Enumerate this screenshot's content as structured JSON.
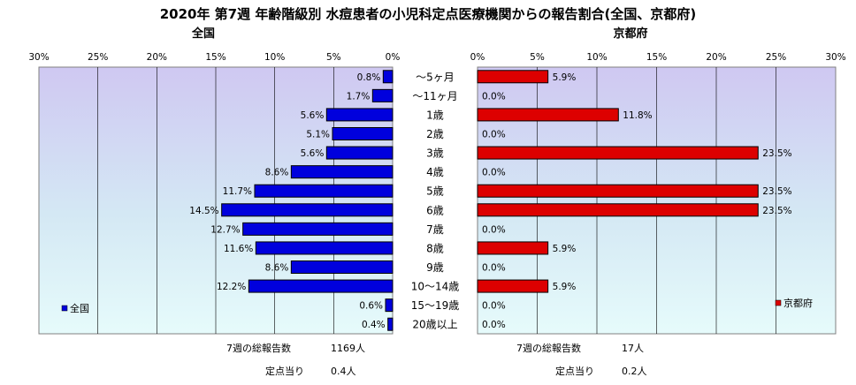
{
  "title": "2020年 第7週 年齢階級別 水痘患者の小児科定点医療機関からの報告割合(全国、京都府)",
  "colors": {
    "national_bar": "#0000dd",
    "kyoto_bar": "#dd0000",
    "bar_edge": "#000000",
    "grid": "#000000"
  },
  "chart_data": [
    {
      "type": "bar",
      "orientation": "horizontal",
      "direction": "right-to-left",
      "title": "全国",
      "categories": [
        "～5ヶ月",
        "～11ヶ月",
        "1歳",
        "2歳",
        "3歳",
        "4歳",
        "5歳",
        "6歳",
        "7歳",
        "8歳",
        "9歳",
        "10～14歳",
        "15～19歳",
        "20歳以上"
      ],
      "series": [
        {
          "name": "全国",
          "values": [
            0.8,
            1.7,
            5.6,
            5.1,
            5.6,
            8.6,
            11.7,
            14.5,
            12.7,
            11.6,
            8.6,
            12.2,
            0.6,
            0.4
          ]
        }
      ],
      "value_labels": [
        "0.8%",
        "1.7%",
        "5.6%",
        "5.1%",
        "5.6%",
        "8.6%",
        "11.7%",
        "14.5%",
        "12.7%",
        "11.6%",
        "8.6%",
        "12.2%",
        "0.6%",
        "0.4%"
      ],
      "xlim": [
        0,
        30
      ],
      "xticks": [
        "30%",
        "25%",
        "20%",
        "15%",
        "10%",
        "5%",
        "0%"
      ],
      "grid": true,
      "legend": "left"
    },
    {
      "type": "bar",
      "orientation": "horizontal",
      "direction": "left-to-right",
      "title": "京都府",
      "categories": [
        "～5ヶ月",
        "～11ヶ月",
        "1歳",
        "2歳",
        "3歳",
        "4歳",
        "5歳",
        "6歳",
        "7歳",
        "8歳",
        "9歳",
        "10～14歳",
        "15～19歳",
        "20歳以上"
      ],
      "series": [
        {
          "name": "京都府",
          "values": [
            5.9,
            0,
            11.8,
            0,
            23.5,
            0,
            23.5,
            23.5,
            0,
            5.9,
            0,
            5.9,
            0,
            0
          ]
        }
      ],
      "value_labels": [
        "5.9%",
        "0.0%",
        "11.8%",
        "0.0%",
        "23.5%",
        "0.0%",
        "23.5%",
        "23.5%",
        "0.0%",
        "5.9%",
        "0.0%",
        "5.9%",
        "0.0%",
        "0.0%"
      ],
      "xlim": [
        0,
        30
      ],
      "xticks": [
        "0%",
        "5%",
        "10%",
        "15%",
        "20%",
        "25%",
        "30%"
      ],
      "grid": true,
      "legend": "right"
    }
  ],
  "footer": {
    "national": {
      "total_label": "7週の総報告数",
      "total_value": "1169人",
      "per_label": "定点当り",
      "per_value": "0.4人"
    },
    "kyoto": {
      "total_label": "7週の総報告数",
      "total_value": "17人",
      "per_label": "定点当り",
      "per_value": "0.2人"
    }
  }
}
